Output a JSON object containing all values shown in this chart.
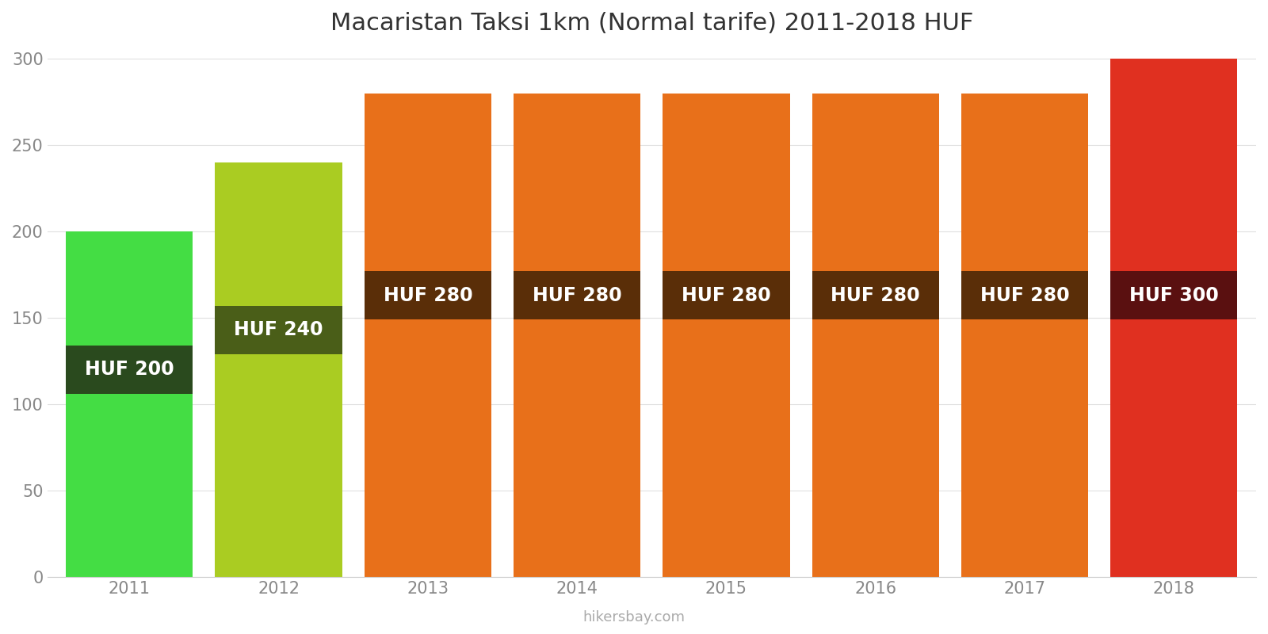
{
  "title": "Macaristan Taksi 1km (Normal tarife) 2011-2018 HUF",
  "years": [
    2011,
    2012,
    2013,
    2014,
    2015,
    2016,
    2017,
    2018
  ],
  "values": [
    200,
    240,
    280,
    280,
    280,
    280,
    280,
    300
  ],
  "bar_colors": [
    "#44dd44",
    "#aacc22",
    "#e8701a",
    "#e8701a",
    "#e8701a",
    "#e8701a",
    "#e8701a",
    "#e03020"
  ],
  "label_bg_colors": [
    "#2a4a1e",
    "#4a5e18",
    "#5a2e08",
    "#5a2e08",
    "#5a2e08",
    "#5a2e08",
    "#5a2e08",
    "#5a1010"
  ],
  "labels": [
    "HUF 200",
    "HUF 240",
    "HUF 280",
    "HUF 280",
    "HUF 280",
    "HUF 280",
    "HUF 280",
    "HUF 300"
  ],
  "ylim": [
    0,
    305
  ],
  "yticks": [
    0,
    50,
    100,
    150,
    200,
    250,
    300
  ],
  "footer": "hikersbay.com",
  "title_fontsize": 22,
  "label_fontsize": 17,
  "tick_fontsize": 15,
  "footer_fontsize": 13,
  "background_color": "#ffffff",
  "label_y_positions": [
    120,
    143,
    163,
    163,
    163,
    163,
    163,
    163
  ],
  "bar_width": 0.85
}
